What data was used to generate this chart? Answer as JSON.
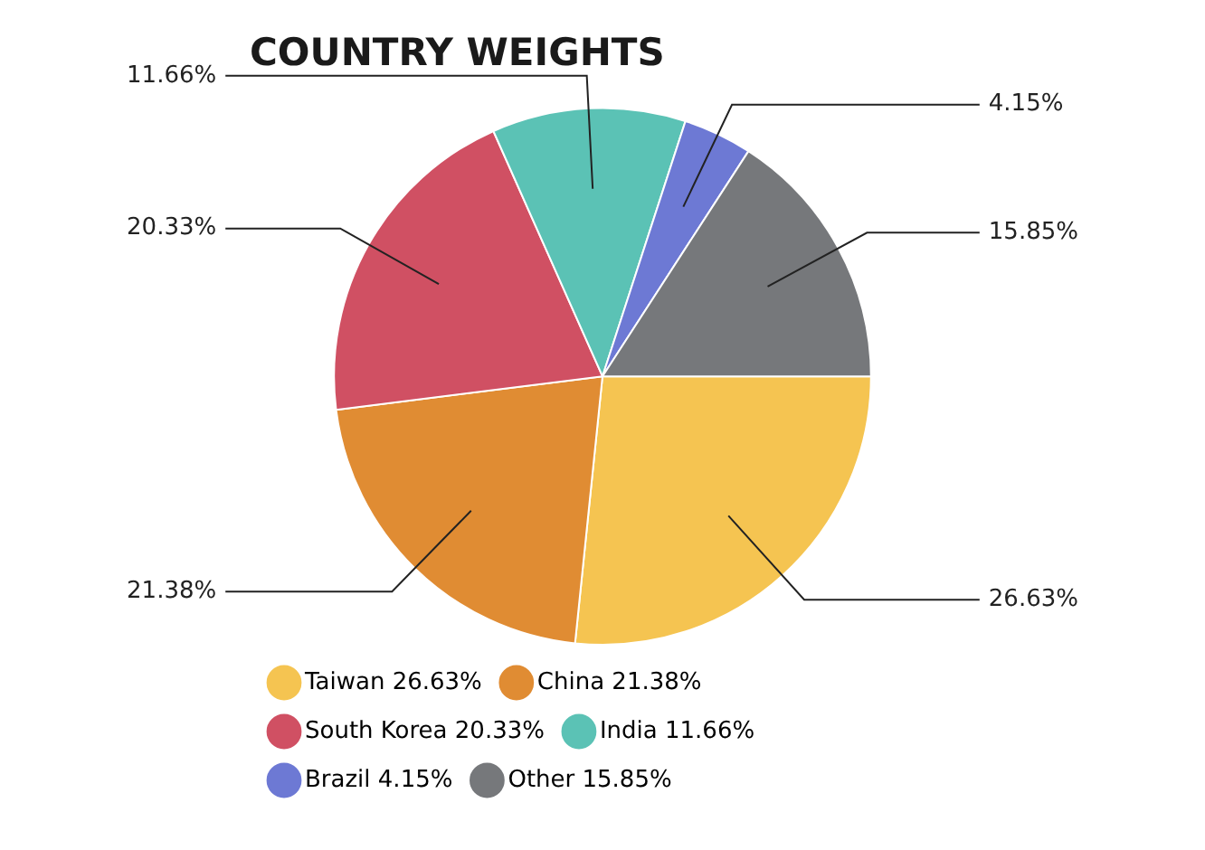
{
  "chart_data": {
    "type": "pie",
    "title": "COUNTRY WEIGHTS",
    "categories": [
      "Taiwan",
      "China",
      "South Korea",
      "India",
      "Brazil",
      "Other"
    ],
    "values": [
      26.63,
      21.38,
      20.33,
      11.66,
      4.15,
      15.85
    ],
    "value_labels": [
      "26.63%",
      "21.38%",
      "20.33%",
      "11.66%",
      "4.15%",
      "15.85%"
    ],
    "colors": [
      "#f5c451",
      "#e08c33",
      "#d05063",
      "#5bc2b5",
      "#6d79d4",
      "#76787b"
    ],
    "legend": "bottom"
  }
}
